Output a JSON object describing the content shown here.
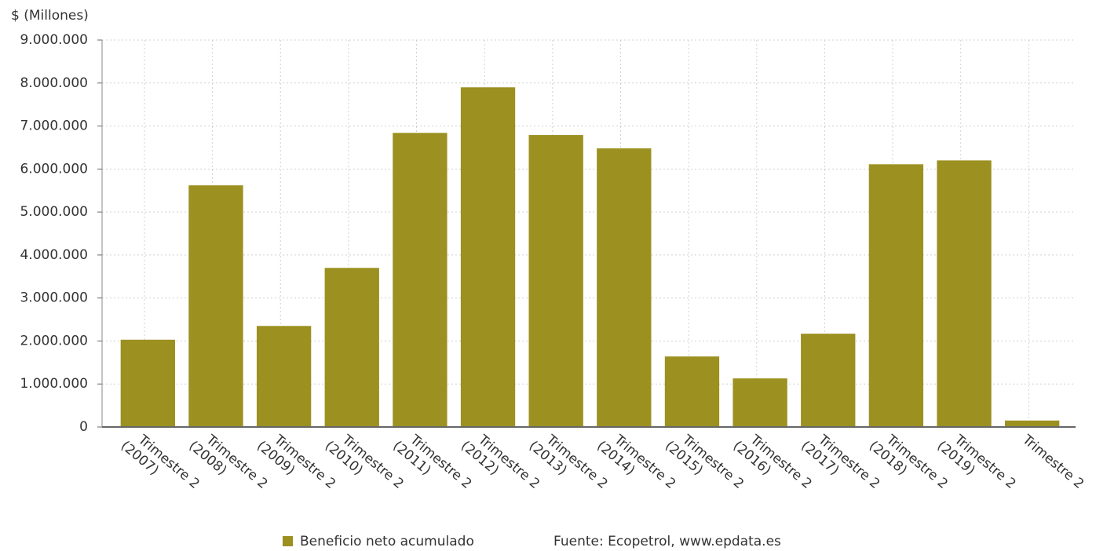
{
  "chart_data": {
    "type": "bar",
    "axis_label": "$ (Millones)",
    "categories": [
      "Trimestre 2 (2007)",
      "Trimestre 2 (2008)",
      "Trimestre 2 (2009)",
      "Trimestre 2 (2010)",
      "Trimestre 2 (2011)",
      "Trimestre 2 (2012)",
      "Trimestre 2 (2013)",
      "Trimestre 2 (2014)",
      "Trimestre 2 (2015)",
      "Trimestre 2 (2016)",
      "Trimestre 2 (2017)",
      "Trimestre 2 (2018)",
      "Trimestre 2 (2019)",
      "Trimestre 2"
    ],
    "series": [
      {
        "name": "Beneficio neto acumulado",
        "color": "#9b9020",
        "values": [
          2030000,
          5620000,
          2350000,
          3700000,
          6840000,
          7900000,
          6790000,
          6480000,
          1640000,
          1130000,
          2170000,
          6110000,
          6200000,
          150000
        ]
      }
    ],
    "source": "Fuente: Ecopetrol, www.epdata.es",
    "ylim": [
      0,
      9000000
    ],
    "yticks": [
      0,
      {
        "value": 1000000,
        "label": "1.000.000"
      },
      {
        "value": 2000000,
        "label": "2.000.000"
      },
      {
        "value": 3000000,
        "label": "3.000.000"
      },
      {
        "value": 4000000,
        "label": "4.000.000"
      },
      {
        "value": 5000000,
        "label": "5.000.000"
      },
      {
        "value": 6000000,
        "label": "6.000.000"
      },
      {
        "value": 7000000,
        "label": "7.000.000"
      },
      {
        "value": 8000000,
        "label": "8.000.000"
      },
      {
        "value": 9000000,
        "label": "9.000.000"
      }
    ],
    "grid": true
  }
}
